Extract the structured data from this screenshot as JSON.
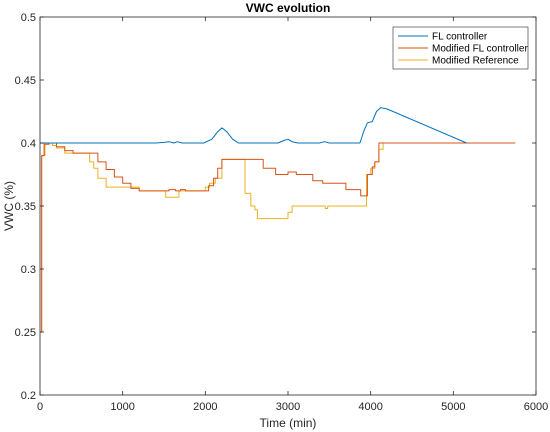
{
  "chart_data": {
    "type": "line",
    "title": "VWC evolution",
    "xlabel": "Time (min)",
    "ylabel": "VWC (%)",
    "xlim": [
      0,
      6000
    ],
    "ylim": [
      0.2,
      0.5
    ],
    "xticks": [
      0,
      1000,
      2000,
      3000,
      4000,
      5000,
      6000
    ],
    "yticks": [
      0.2,
      0.25,
      0.3,
      0.35,
      0.4,
      0.45,
      0.5
    ],
    "xtick_labels": [
      "0",
      "1000",
      "2000",
      "3000",
      "4000",
      "5000",
      "6000"
    ],
    "ytick_labels": [
      "0.2",
      "0.25",
      "0.3",
      "0.35",
      "0.4",
      "0.45",
      "0.5"
    ],
    "grid": false,
    "legend_position": "top-right",
    "series": [
      {
        "name": "FL controller",
        "color": "#0072BD",
        "style": "smooth",
        "points": [
          [
            0,
            0.4
          ],
          [
            1400,
            0.4
          ],
          [
            1500,
            0.4005
          ],
          [
            1560,
            0.401
          ],
          [
            1620,
            0.4
          ],
          [
            1660,
            0.401
          ],
          [
            1720,
            0.4
          ],
          [
            1980,
            0.4
          ],
          [
            2080,
            0.403
          ],
          [
            2150,
            0.409
          ],
          [
            2200,
            0.412
          ],
          [
            2260,
            0.409
          ],
          [
            2330,
            0.403
          ],
          [
            2400,
            0.4
          ],
          [
            2880,
            0.4
          ],
          [
            2950,
            0.402
          ],
          [
            3000,
            0.403
          ],
          [
            3050,
            0.401
          ],
          [
            3120,
            0.4
          ],
          [
            3380,
            0.4
          ],
          [
            3440,
            0.401
          ],
          [
            3500,
            0.4
          ],
          [
            3870,
            0.4
          ],
          [
            3920,
            0.41
          ],
          [
            3960,
            0.416
          ],
          [
            4020,
            0.417
          ],
          [
            4070,
            0.425
          ],
          [
            4120,
            0.428
          ],
          [
            4200,
            0.427
          ],
          [
            5160,
            0.4
          ]
        ]
      },
      {
        "name": "Modified FL controller",
        "color": "#D95319",
        "style": "step",
        "points": [
          [
            0,
            0.25
          ],
          [
            20,
            0.39
          ],
          [
            50,
            0.399
          ],
          [
            110,
            0.4
          ],
          [
            200,
            0.397
          ],
          [
            300,
            0.394
          ],
          [
            400,
            0.392
          ],
          [
            550,
            0.392
          ],
          [
            700,
            0.385
          ],
          [
            800,
            0.379
          ],
          [
            900,
            0.373
          ],
          [
            1000,
            0.368
          ],
          [
            1100,
            0.364
          ],
          [
            1200,
            0.362
          ],
          [
            1500,
            0.362
          ],
          [
            1560,
            0.363
          ],
          [
            1640,
            0.362
          ],
          [
            1700,
            0.363
          ],
          [
            1760,
            0.362
          ],
          [
            1940,
            0.362
          ],
          [
            2040,
            0.366
          ],
          [
            2100,
            0.372
          ],
          [
            2150,
            0.38
          ],
          [
            2200,
            0.387
          ],
          [
            2450,
            0.387
          ],
          [
            2700,
            0.38
          ],
          [
            2850,
            0.375
          ],
          [
            3000,
            0.377
          ],
          [
            3100,
            0.375
          ],
          [
            3300,
            0.37
          ],
          [
            3420,
            0.368
          ],
          [
            3500,
            0.368
          ],
          [
            3700,
            0.363
          ],
          [
            3880,
            0.358
          ],
          [
            3960,
            0.375
          ],
          [
            4020,
            0.381
          ],
          [
            4050,
            0.385
          ],
          [
            4100,
            0.4
          ],
          [
            5750,
            0.4
          ]
        ]
      },
      {
        "name": "Modified Reference",
        "color": "#EDB120",
        "style": "step",
        "points": [
          [
            0,
            0.25
          ],
          [
            20,
            0.39
          ],
          [
            60,
            0.4
          ],
          [
            150,
            0.398
          ],
          [
            200,
            0.396
          ],
          [
            300,
            0.392
          ],
          [
            550,
            0.392
          ],
          [
            600,
            0.385
          ],
          [
            650,
            0.38
          ],
          [
            700,
            0.372
          ],
          [
            800,
            0.365
          ],
          [
            1150,
            0.365
          ],
          [
            1200,
            0.362
          ],
          [
            1500,
            0.362
          ],
          [
            1520,
            0.357
          ],
          [
            1660,
            0.357
          ],
          [
            1680,
            0.362
          ],
          [
            1950,
            0.362
          ],
          [
            2000,
            0.365
          ],
          [
            2050,
            0.368
          ],
          [
            2120,
            0.372
          ],
          [
            2200,
            0.387
          ],
          [
            2450,
            0.387
          ],
          [
            2480,
            0.36
          ],
          [
            2550,
            0.35
          ],
          [
            2600,
            0.347
          ],
          [
            2630,
            0.34
          ],
          [
            2950,
            0.34
          ],
          [
            3000,
            0.345
          ],
          [
            3050,
            0.35
          ],
          [
            3420,
            0.35
          ],
          [
            3450,
            0.348
          ],
          [
            3480,
            0.35
          ],
          [
            3900,
            0.35
          ],
          [
            3950,
            0.375
          ],
          [
            4000,
            0.38
          ],
          [
            4050,
            0.385
          ],
          [
            4100,
            0.395
          ],
          [
            4150,
            0.4
          ],
          [
            5750,
            0.4
          ]
        ]
      }
    ]
  }
}
